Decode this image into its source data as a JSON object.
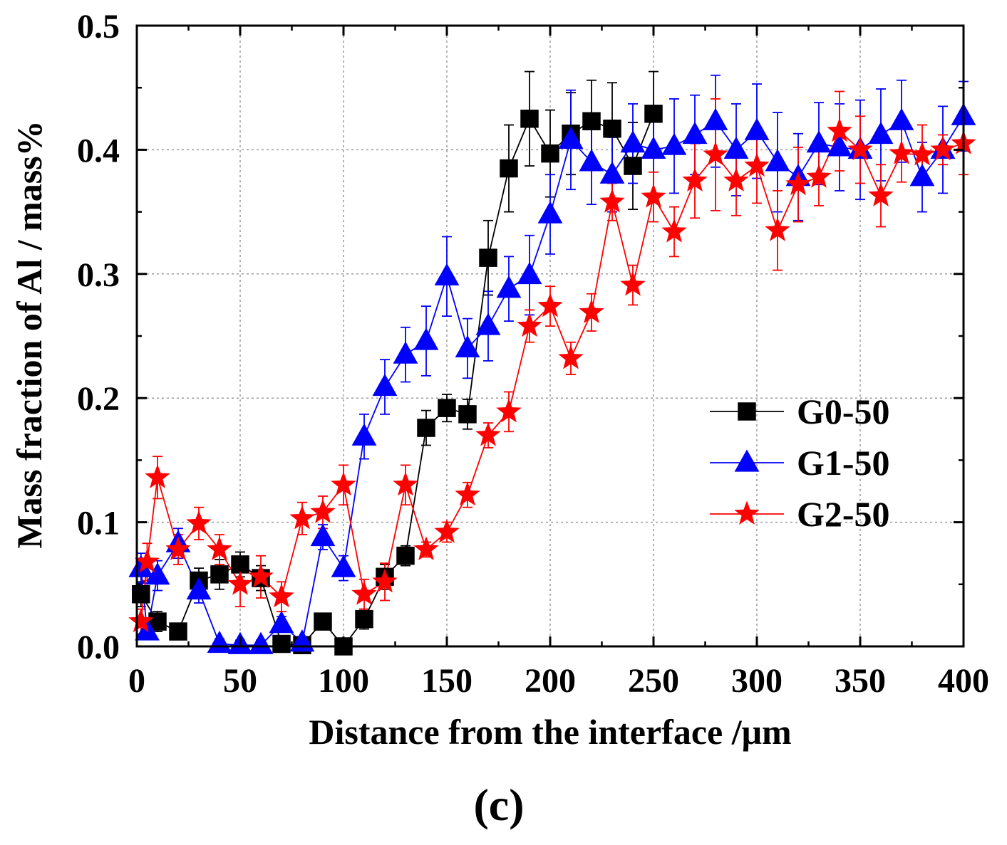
{
  "chart_data": {
    "type": "line",
    "title": "",
    "xlabel": "Distance from the interface /μm",
    "ylabel": "Mass fraction of Al / mass%",
    "xlim": [
      0,
      400
    ],
    "ylim": [
      0,
      0.5
    ],
    "xticks": [
      0,
      50,
      100,
      150,
      200,
      250,
      300,
      350,
      400
    ],
    "xtick_labels": [
      "0",
      "50",
      "100",
      "150",
      "200",
      "250",
      "300",
      "350",
      "400"
    ],
    "yticks": [
      0,
      0.1,
      0.2,
      0.3,
      0.4,
      0.5
    ],
    "ytick_labels": [
      "0.0",
      "0.1",
      "0.2",
      "0.3",
      "0.4",
      "0.5"
    ],
    "grid": true,
    "legend_position": "center-right",
    "panel_label": "(c)",
    "series": [
      {
        "name": "G0-50",
        "marker": "square",
        "color": "#000000",
        "x": [
          2,
          10,
          20,
          30,
          40,
          50,
          60,
          70,
          80,
          90,
          100,
          110,
          120,
          130,
          140,
          150,
          160,
          170,
          180,
          190,
          200,
          210,
          220,
          230,
          240,
          250
        ],
        "y": [
          0.042,
          0.02,
          0.012,
          0.053,
          0.058,
          0.066,
          0.055,
          0.002,
          0.001,
          0.02,
          0.0,
          0.022,
          0.056,
          0.073,
          0.176,
          0.192,
          0.187,
          0.313,
          0.385,
          0.425,
          0.397,
          0.413,
          0.423,
          0.417,
          0.387,
          0.429
        ],
        "err": [
          0.01,
          0.008,
          0.006,
          0.01,
          0.012,
          0.01,
          0.01,
          0.005,
          0.004,
          0.006,
          0.004,
          0.008,
          0.01,
          0.008,
          0.014,
          0.011,
          0.012,
          0.03,
          0.035,
          0.038,
          0.035,
          0.033,
          0.033,
          0.037,
          0.035,
          0.034
        ]
      },
      {
        "name": "G1-50",
        "marker": "triangle",
        "color": "#0000ff",
        "x": [
          2,
          5,
          10,
          20,
          30,
          40,
          50,
          60,
          70,
          80,
          90,
          100,
          110,
          120,
          130,
          140,
          150,
          160,
          170,
          180,
          190,
          200,
          210,
          220,
          230,
          240,
          250,
          260,
          270,
          280,
          290,
          300,
          310,
          320,
          330,
          340,
          350,
          360,
          370,
          380,
          390,
          400
        ],
        "y": [
          0.063,
          0.012,
          0.057,
          0.083,
          0.045,
          0.002,
          0.001,
          0.001,
          0.018,
          0.003,
          0.088,
          0.063,
          0.169,
          0.209,
          0.235,
          0.246,
          0.298,
          0.24,
          0.258,
          0.288,
          0.299,
          0.348,
          0.408,
          0.39,
          0.38,
          0.405,
          0.4,
          0.403,
          0.412,
          0.423,
          0.4,
          0.415,
          0.39,
          0.378,
          0.405,
          0.402,
          0.4,
          0.412,
          0.423,
          0.378,
          0.4,
          0.427
        ],
        "err": [
          0.012,
          0.006,
          0.012,
          0.012,
          0.01,
          0.004,
          0.004,
          0.004,
          0.006,
          0.004,
          0.01,
          0.01,
          0.018,
          0.022,
          0.022,
          0.028,
          0.032,
          0.024,
          0.028,
          0.026,
          0.032,
          0.032,
          0.04,
          0.034,
          0.03,
          0.032,
          0.035,
          0.038,
          0.032,
          0.037,
          0.037,
          0.038,
          0.04,
          0.035,
          0.033,
          0.035,
          0.04,
          0.037,
          0.033,
          0.028,
          0.035,
          0.028
        ]
      },
      {
        "name": "G2-50",
        "marker": "star",
        "color": "#ff0000",
        "x": [
          2,
          5,
          10,
          20,
          30,
          40,
          50,
          60,
          70,
          80,
          90,
          100,
          110,
          120,
          130,
          140,
          150,
          160,
          170,
          180,
          190,
          200,
          210,
          220,
          230,
          240,
          250,
          260,
          270,
          280,
          290,
          300,
          310,
          320,
          330,
          340,
          350,
          360,
          370,
          380,
          390,
          400
        ],
        "y": [
          0.02,
          0.068,
          0.136,
          0.078,
          0.099,
          0.078,
          0.05,
          0.056,
          0.04,
          0.103,
          0.108,
          0.13,
          0.042,
          0.052,
          0.13,
          0.078,
          0.092,
          0.122,
          0.17,
          0.189,
          0.258,
          0.274,
          0.232,
          0.269,
          0.358,
          0.291,
          0.362,
          0.334,
          0.375,
          0.396,
          0.375,
          0.387,
          0.335,
          0.372,
          0.378,
          0.415,
          0.4,
          0.363,
          0.397,
          0.396,
          0.4,
          0.405
        ],
        "err": [
          0.01,
          0.015,
          0.017,
          0.012,
          0.013,
          0.012,
          0.018,
          0.017,
          0.012,
          0.013,
          0.013,
          0.016,
          0.012,
          0.015,
          0.016,
          0.006,
          0.008,
          0.01,
          0.01,
          0.016,
          0.013,
          0.016,
          0.013,
          0.015,
          0.015,
          0.016,
          0.02,
          0.02,
          0.03,
          0.045,
          0.028,
          0.03,
          0.032,
          0.03,
          0.023,
          0.032,
          0.027,
          0.025,
          0.023,
          0.024,
          0.012,
          0.025
        ]
      }
    ]
  }
}
